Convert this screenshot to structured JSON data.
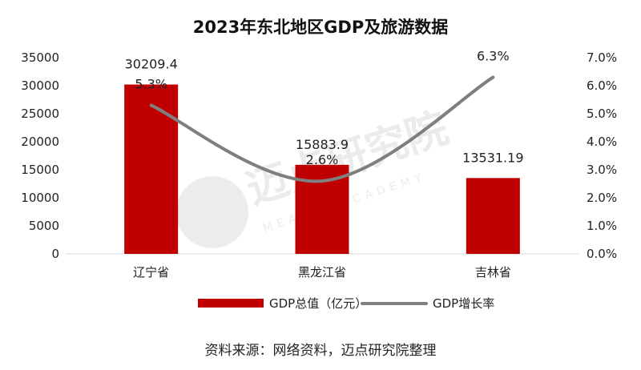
{
  "chart_data": {
    "type": "bar",
    "title": "2023年东北地区GDP及旅游数据",
    "categories": [
      "辽宁省",
      "黑龙江省",
      "吉林省"
    ],
    "series": [
      {
        "name": "GDP总值（亿元）",
        "type": "bar",
        "axis": "left",
        "values": [
          30209.4,
          15883.9,
          13531.19
        ],
        "labels": [
          "30209.4",
          "15883.9",
          "13531.19"
        ],
        "color": "#c00000"
      },
      {
        "name": "GDP增长率",
        "type": "line",
        "axis": "right",
        "values": [
          5.3,
          2.6,
          6.3
        ],
        "labels": [
          "5.3%",
          "2.6%",
          "6.3%"
        ],
        "color": "#7f7f7f"
      }
    ],
    "y_left": {
      "min": 0,
      "max": 35000,
      "ticks": [
        "0",
        "5000",
        "10000",
        "15000",
        "20000",
        "25000",
        "30000",
        "35000"
      ]
    },
    "y_right": {
      "min": 0,
      "max": 7,
      "ticks": [
        "0.0%",
        "1.0%",
        "2.0%",
        "3.0%",
        "4.0%",
        "5.0%",
        "6.0%",
        "7.0%"
      ]
    },
    "grid": false,
    "legend": "bottom"
  },
  "source": "资料来源：网络资料，迈点研究院整理",
  "watermark": {
    "text": "迈点研究院",
    "subtext": "MEADIN ACADEMY"
  }
}
